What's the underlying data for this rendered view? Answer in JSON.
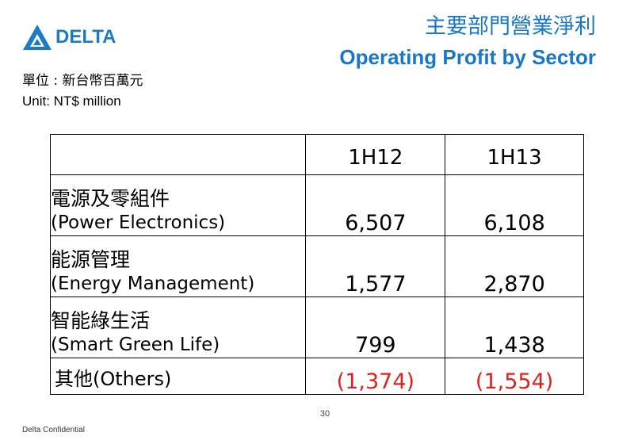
{
  "logo": {
    "text": "DELTA",
    "brand_color": "#1d7bc1"
  },
  "title": {
    "zh": "主要部門營業淨利",
    "en": "Operating Profit by Sector",
    "color": "#1877c6"
  },
  "unit": {
    "zh": "單位 : 新台幣百萬元",
    "en": "Unit: NT$ million"
  },
  "table": {
    "columns": [
      "1H12",
      "1H13"
    ],
    "rows": [
      {
        "zh": "電源及零組件",
        "en": "(Power Electronics)",
        "values": [
          "6,507",
          "6,108"
        ]
      },
      {
        "zh": "能源管理",
        "en": "(Energy Management)",
        "values": [
          "1,577",
          "2,870"
        ]
      },
      {
        "zh": "智能綠生活",
        "en": "(Smart Green Life)",
        "values": [
          "799",
          "1,438"
        ]
      },
      {
        "label": "其他(Others)",
        "values": [
          "(1,374)",
          "(1,554)"
        ]
      }
    ],
    "negative_color": "#e02020"
  },
  "footer": {
    "page_number": "30",
    "confidential": "Delta Confidential"
  }
}
